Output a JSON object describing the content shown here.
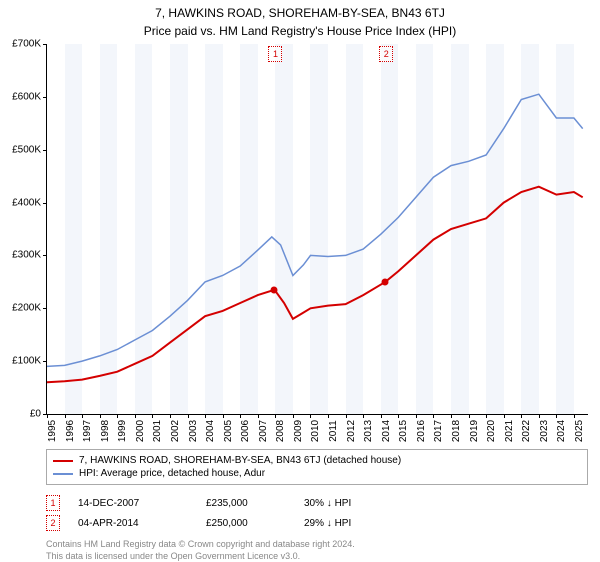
{
  "title": "7, HAWKINS ROAD, SHOREHAM-BY-SEA, BN43 6TJ",
  "subtitle": "Price paid vs. HM Land Registry's House Price Index (HPI)",
  "chart": {
    "type": "line",
    "background_color": "#ffffff",
    "x": {
      "min": 1995,
      "max": 2025.8,
      "ticks": [
        1995,
        1996,
        1997,
        1998,
        1999,
        2000,
        2001,
        2002,
        2003,
        2004,
        2005,
        2006,
        2007,
        2008,
        2009,
        2010,
        2011,
        2012,
        2013,
        2014,
        2015,
        2016,
        2017,
        2018,
        2019,
        2020,
        2021,
        2022,
        2023,
        2024,
        2025
      ],
      "tick_fontsize": 10
    },
    "y": {
      "min": 0,
      "max": 700000,
      "ticks": [
        0,
        100000,
        200000,
        300000,
        400000,
        500000,
        600000,
        700000
      ],
      "labels": [
        "£0",
        "£100K",
        "£200K",
        "£300K",
        "£400K",
        "£500K",
        "£600K",
        "£700K"
      ],
      "tick_fontsize": 10
    },
    "bands": {
      "alt_color": "#f3f6fb",
      "width_years": 1,
      "shaded_start_years": [
        1996,
        1998,
        2000,
        2002,
        2004,
        2006,
        2008,
        2010,
        2012,
        2014,
        2016,
        2018,
        2020,
        2022,
        2024
      ]
    },
    "series": {
      "property": {
        "color": "#d40000",
        "width": 2,
        "points": [
          [
            1995,
            60000
          ],
          [
            1996,
            62000
          ],
          [
            1997,
            65000
          ],
          [
            1998,
            72000
          ],
          [
            1999,
            80000
          ],
          [
            2000,
            95000
          ],
          [
            2001,
            110000
          ],
          [
            2002,
            135000
          ],
          [
            2003,
            160000
          ],
          [
            2004,
            185000
          ],
          [
            2005,
            195000
          ],
          [
            2006,
            210000
          ],
          [
            2007,
            225000
          ],
          [
            2007.95,
            235000
          ],
          [
            2008.5,
            210000
          ],
          [
            2009,
            180000
          ],
          [
            2009.5,
            190000
          ],
          [
            2010,
            200000
          ],
          [
            2011,
            205000
          ],
          [
            2012,
            208000
          ],
          [
            2013,
            225000
          ],
          [
            2014.26,
            250000
          ],
          [
            2015,
            270000
          ],
          [
            2016,
            300000
          ],
          [
            2017,
            330000
          ],
          [
            2018,
            350000
          ],
          [
            2019,
            360000
          ],
          [
            2020,
            370000
          ],
          [
            2021,
            400000
          ],
          [
            2022,
            420000
          ],
          [
            2023,
            430000
          ],
          [
            2024,
            415000
          ],
          [
            2025,
            420000
          ],
          [
            2025.5,
            410000
          ]
        ]
      },
      "hpi": {
        "color": "#6b8fd4",
        "width": 1.5,
        "points": [
          [
            1995,
            90000
          ],
          [
            1996,
            92000
          ],
          [
            1997,
            100000
          ],
          [
            1998,
            110000
          ],
          [
            1999,
            122000
          ],
          [
            2000,
            140000
          ],
          [
            2001,
            158000
          ],
          [
            2002,
            185000
          ],
          [
            2003,
            215000
          ],
          [
            2004,
            250000
          ],
          [
            2005,
            262000
          ],
          [
            2006,
            280000
          ],
          [
            2007,
            310000
          ],
          [
            2007.8,
            335000
          ],
          [
            2008.3,
            320000
          ],
          [
            2009,
            262000
          ],
          [
            2009.6,
            282000
          ],
          [
            2010,
            300000
          ],
          [
            2011,
            298000
          ],
          [
            2012,
            300000
          ],
          [
            2013,
            312000
          ],
          [
            2014,
            340000
          ],
          [
            2015,
            372000
          ],
          [
            2016,
            410000
          ],
          [
            2017,
            448000
          ],
          [
            2018,
            470000
          ],
          [
            2019,
            478000
          ],
          [
            2020,
            490000
          ],
          [
            2021,
            540000
          ],
          [
            2022,
            595000
          ],
          [
            2023,
            605000
          ],
          [
            2024,
            560000
          ],
          [
            2025,
            560000
          ],
          [
            2025.5,
            540000
          ]
        ]
      }
    },
    "markers": [
      {
        "n": "1",
        "x": 2007.95,
        "y": 235000,
        "color": "#d40000"
      },
      {
        "n": "2",
        "x": 2014.26,
        "y": 250000,
        "color": "#d40000"
      }
    ]
  },
  "legend": [
    {
      "color": "#d40000",
      "label": "7, HAWKINS ROAD, SHOREHAM-BY-SEA, BN43 6TJ (detached house)"
    },
    {
      "color": "#6b8fd4",
      "label": "HPI: Average price, detached house, Adur"
    }
  ],
  "sales": [
    {
      "n": "1",
      "color": "#d40000",
      "date": "14-DEC-2007",
      "price": "£235,000",
      "delta": "30% ↓ HPI"
    },
    {
      "n": "2",
      "color": "#d40000",
      "date": "04-APR-2014",
      "price": "£250,000",
      "delta": "29% ↓ HPI"
    }
  ],
  "footer": [
    "Contains HM Land Registry data © Crown copyright and database right 2024.",
    "This data is licensed under the Open Government Licence v3.0."
  ]
}
